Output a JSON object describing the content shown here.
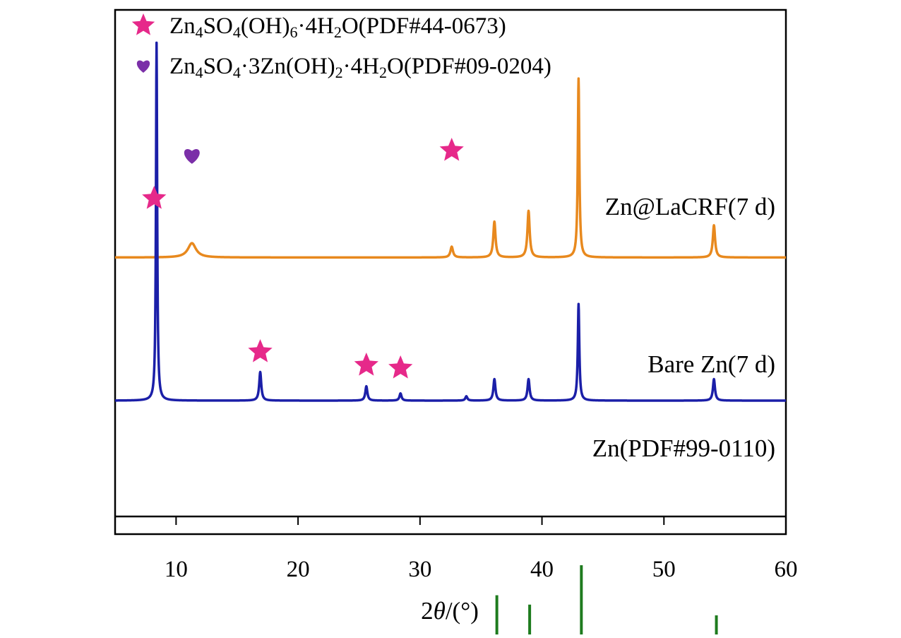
{
  "chart_data": {
    "type": "line",
    "title": "",
    "xlabel": "2θ/(°)",
    "xlabel_parts": {
      "prefix": "2",
      "symbol": "θ",
      "suffix": "/(°)"
    },
    "ylabel": "",
    "xlim": [
      5,
      60
    ],
    "xticks": [
      10,
      20,
      30,
      40,
      50,
      60
    ],
    "grid": false,
    "y_axis_visible": false,
    "legend": {
      "placement": "top-left",
      "entries": [
        {
          "marker": "star-icon",
          "color": "#E6298A",
          "label_parts": [
            [
              "Zn",
              "n"
            ],
            [
              "4",
              "sub"
            ],
            [
              "SO",
              "n"
            ],
            [
              "4",
              "sub"
            ],
            [
              "(OH)",
              "n"
            ],
            [
              "6",
              "sub"
            ],
            [
              "·4H",
              "n"
            ],
            [
              "2",
              "sub"
            ],
            [
              "O(PDF#44-0673)",
              "n"
            ]
          ]
        },
        {
          "marker": "heart-icon",
          "color": "#7B2FA8",
          "label_parts": [
            [
              "Zn",
              "n"
            ],
            [
              "4",
              "sub"
            ],
            [
              "SO",
              "n"
            ],
            [
              "4",
              "sub"
            ],
            [
              "·3Zn(OH)",
              "n"
            ],
            [
              "2",
              "sub"
            ],
            [
              "·4H",
              "n"
            ],
            [
              "2",
              "sub"
            ],
            [
              "O(PDF#09-0204)",
              "n"
            ]
          ]
        }
      ]
    },
    "series": [
      {
        "name": "Zn@LaCRF(7 d)",
        "color": "#E8891E",
        "relative_baseline": 0.2,
        "peaks": [
          {
            "x": 11.3,
            "h": 0.02,
            "w": 0.8
          },
          {
            "x": 32.6,
            "h": 0.015,
            "w": 0.25
          },
          {
            "x": 36.1,
            "h": 0.05,
            "w": 0.22
          },
          {
            "x": 38.9,
            "h": 0.065,
            "w": 0.22
          },
          {
            "x": 43.0,
            "h": 0.25,
            "w": 0.15
          },
          {
            "x": 54.1,
            "h": 0.045,
            "w": 0.22
          }
        ]
      },
      {
        "name": "Bare Zn(7 d)",
        "color": "#1B1FA8",
        "relative_baseline": 0.0,
        "peaks": [
          {
            "x": 8.4,
            "h": 0.5,
            "w": 0.12
          },
          {
            "x": 16.9,
            "h": 0.04,
            "w": 0.2
          },
          {
            "x": 25.6,
            "h": 0.02,
            "w": 0.2
          },
          {
            "x": 28.4,
            "h": 0.01,
            "w": 0.2
          },
          {
            "x": 33.8,
            "h": 0.006,
            "w": 0.2
          },
          {
            "x": 36.1,
            "h": 0.03,
            "w": 0.2
          },
          {
            "x": 38.9,
            "h": 0.03,
            "w": 0.2
          },
          {
            "x": 43.0,
            "h": 0.135,
            "w": 0.15
          },
          {
            "x": 54.1,
            "h": 0.03,
            "w": 0.2
          }
        ]
      },
      {
        "name": "Zn(PDF#99-0110)",
        "color": "#1E7B1E",
        "style": "sticks",
        "relative_baseline": -0.33,
        "sticks": [
          {
            "x": 36.3,
            "h": 0.058
          },
          {
            "x": 38.99,
            "h": 0.045
          },
          {
            "x": 43.23,
            "h": 0.1
          },
          {
            "x": 54.3,
            "h": 0.03
          }
        ]
      }
    ],
    "annotations": [
      {
        "marker": "heart-icon",
        "series": "Zn@LaCRF(7 d)",
        "x": 11.3
      },
      {
        "marker": "star-icon",
        "series": "Zn@LaCRF(7 d)",
        "x": 32.6
      },
      {
        "marker": "star-icon",
        "series": "Bare Zn(7 d)",
        "x": 8.2
      },
      {
        "marker": "star-icon",
        "series": "Bare Zn(7 d)",
        "x": 16.9
      },
      {
        "marker": "star-icon",
        "series": "Bare Zn(7 d)",
        "x": 25.6
      },
      {
        "marker": "star-icon",
        "series": "Bare Zn(7 d)",
        "x": 28.4
      }
    ]
  }
}
